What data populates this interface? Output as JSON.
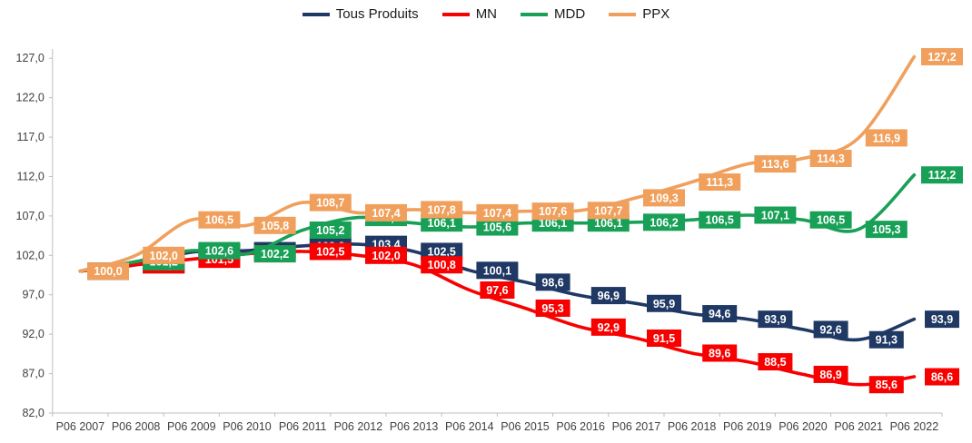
{
  "chart_data": {
    "type": "line",
    "title": "",
    "legend_position": "top",
    "grid": false,
    "smooth_lines": true,
    "data_labels": {
      "position": "right-of-point",
      "decimal_separator": ","
    },
    "categories": [
      "P06 2007",
      "P06 2008",
      "P06 2009",
      "P06 2010",
      "P06 2011",
      "P06 2012",
      "P06 2013",
      "P06 2014",
      "P06 2015",
      "P06 2016",
      "P06 2017",
      "P06 2018",
      "P06 2019",
      "P06 2020",
      "P06 2021",
      "P06 2022"
    ],
    "series": [
      {
        "name": "Tous Produits",
        "color": "#1F3864",
        "values": [
          100.0,
          100.8,
          102.4,
          102.6,
          103.2,
          103.4,
          102.5,
          100.1,
          98.6,
          96.9,
          95.9,
          94.6,
          93.9,
          92.6,
          91.3,
          93.9
        ]
      },
      {
        "name": "MN",
        "color": "#F80000",
        "values": [
          100.0,
          100.8,
          101.5,
          102.2,
          102.5,
          102.0,
          100.8,
          97.6,
          95.3,
          92.9,
          91.5,
          89.6,
          88.5,
          86.9,
          85.6,
          86.6
        ]
      },
      {
        "name": "MDD",
        "color": "#18A057",
        "values": [
          100.0,
          101.2,
          102.6,
          102.2,
          105.2,
          106.8,
          106.1,
          105.6,
          106.1,
          106.1,
          106.2,
          106.5,
          107.1,
          106.5,
          105.3,
          112.2
        ]
      },
      {
        "name": "PPX",
        "color": "#F0A05C",
        "values": [
          100.0,
          102.0,
          106.5,
          105.8,
          108.7,
          107.4,
          107.8,
          107.4,
          107.6,
          107.7,
          109.3,
          111.3,
          113.6,
          114.3,
          116.9,
          127.2
        ]
      }
    ],
    "occluded_label_indices": {
      "Tous Produits": [
        1,
        2,
        3,
        4
      ],
      "MN": [
        1,
        2,
        3
      ],
      "MDD": [
        1,
        5
      ]
    },
    "y_axis": {
      "min": 82.0,
      "max": 127.0,
      "step": 5.0,
      "tick_labels": [
        "127,0",
        "122,0",
        "117,0",
        "112,0",
        "107,0",
        "102,0",
        "97,0",
        "92,0",
        "87,0",
        "82,0"
      ]
    },
    "x_axis": {
      "tick_labels": [
        "P06 2007",
        "P06 2008",
        "P06 2009",
        "P06 2010",
        "P06 2011",
        "P06 2012",
        "P06 2013",
        "P06 2014",
        "P06 2015",
        "P06 2016",
        "P06 2017",
        "P06 2018",
        "P06 2019",
        "P06 2020",
        "P06 2021",
        "P06 2022"
      ]
    },
    "axis_color": "#BFBFBF",
    "axis_text_color": "#404040"
  }
}
